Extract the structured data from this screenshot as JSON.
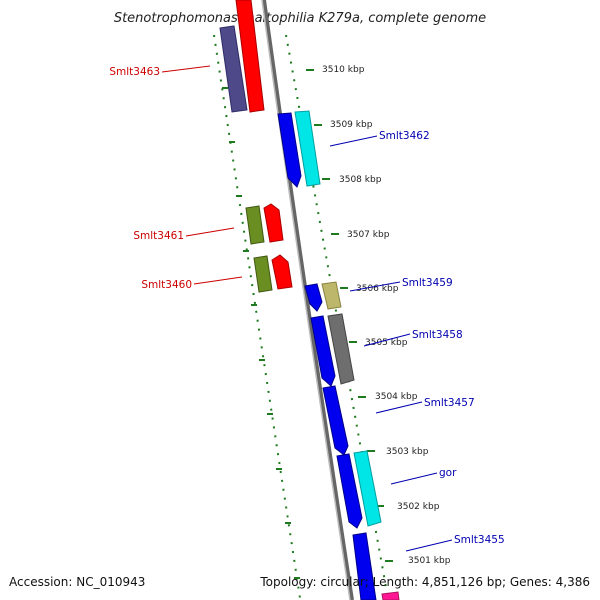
{
  "title": "Stenotrophomonas maltophilia K279a, complete genome",
  "footer": {
    "accession": "Accession: NC_010943",
    "topology": "Topology: circular; Length: 4,851,126 bp; Genes: 4,386"
  },
  "colors": {
    "backbone": "#888888",
    "tick_outer": "#1e7a1e",
    "label_reverse": "#cc0000",
    "label_forward": "#0000b0"
  },
  "ticks": [
    "3510 kbp",
    "3509 kbp",
    "3508 kbp",
    "3507 kbp",
    "3506 kbp",
    "3505 kbp",
    "3504 kbp",
    "3503 kbp",
    "3502 kbp",
    "3501 kbp"
  ],
  "genes_reverse": [
    "Smlt3463",
    "Smlt3461",
    "Smlt3460"
  ],
  "genes_forward": [
    "Smlt3462",
    "Smlt3459",
    "Smlt3458",
    "Smlt3457",
    "gor",
    "Smlt3455"
  ]
}
